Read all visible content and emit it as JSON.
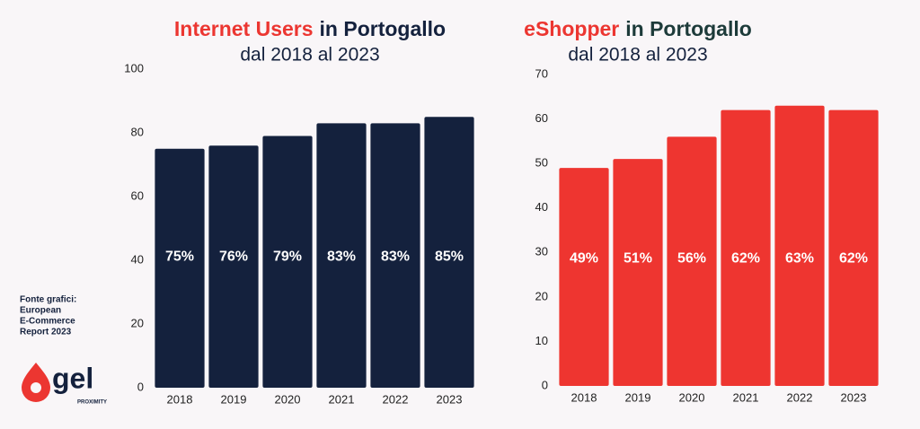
{
  "chart_data": [
    {
      "type": "bar",
      "title_parts": [
        {
          "text": "Internet Users",
          "color": "#ec3631"
        },
        {
          "text": "in Portogallo",
          "color": "#14213d"
        }
      ],
      "subtitle": "dal 2018 al 2023",
      "categories": [
        "2018",
        "2019",
        "2020",
        "2021",
        "2022",
        "2023"
      ],
      "values": [
        75,
        76,
        79,
        83,
        83,
        85
      ],
      "value_labels": [
        "75%",
        "76%",
        "79%",
        "83%",
        "83%",
        "85%"
      ],
      "color": "#14213d",
      "ylim": [
        0,
        100
      ],
      "yticks": [
        0,
        20,
        40,
        60,
        80,
        100
      ],
      "grid": false
    },
    {
      "type": "bar",
      "title_parts": [
        {
          "text": "eShopper",
          "color": "#ec3631"
        },
        {
          "text": "in Portogallo",
          "color": "#1d3b3a"
        }
      ],
      "subtitle": "dal 2018 al 2023",
      "categories": [
        "2018",
        "2019",
        "2020",
        "2021",
        "2022",
        "2023"
      ],
      "values": [
        49,
        51,
        56,
        62,
        63,
        62
      ],
      "value_labels": [
        "49%",
        "51%",
        "56%",
        "62%",
        "63%",
        "62%"
      ],
      "color": "#ee3530",
      "ylim": [
        0,
        70
      ],
      "yticks": [
        0,
        10,
        20,
        30,
        40,
        50,
        60,
        70
      ],
      "grid": false
    }
  ],
  "source": [
    "Fonte grafici:",
    "European",
    "E-Commerce",
    "Report 2023"
  ],
  "logo": {
    "text": "gel",
    "tagline": "PROXIMITY"
  }
}
